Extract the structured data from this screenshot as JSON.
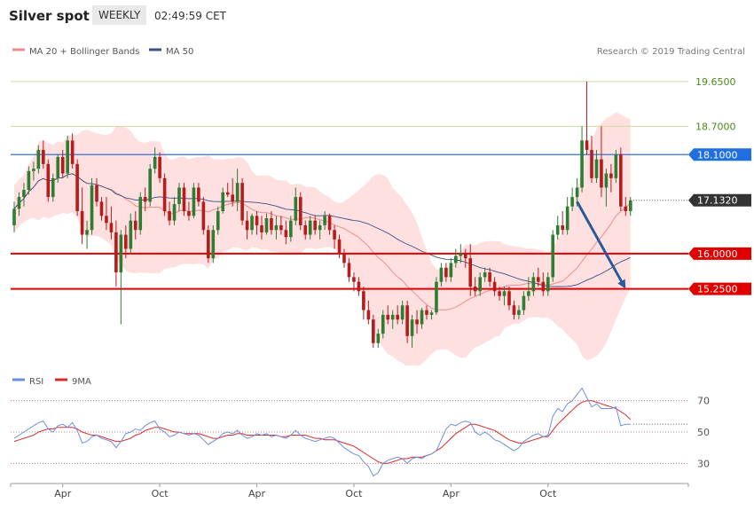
{
  "header": {
    "title": "Silver spot",
    "period": "WEEKLY",
    "time": "02:49:59 CET"
  },
  "legend": {
    "ma20": "MA 20 + Bollinger Bands",
    "ma50": "MA 50",
    "credit": "Research © 2019 Trading Central",
    "rsi": "RSI",
    "rsi_ma": "9MA"
  },
  "colors": {
    "candle_up": "#2e7d32",
    "candle_down": "#b71c1c",
    "bollinger_fill": "#ffe0e0",
    "ma20": "#f28b8b",
    "ma50": "#3b4f8a",
    "resistance_line": "#c8dca0",
    "resistance_label": "#4a8a1a",
    "ma50_hline": "#3a6fd8",
    "ma50_label_bg": "#1f6fe0",
    "support": "#e00000",
    "current_bg": "#333333",
    "arrow": "#2a5a9a",
    "rsi_line": "#6b8fe0",
    "rsi_ma_line": "#d52b2b"
  },
  "chart_data": [
    {
      "type": "candlestick",
      "title": "Silver spot",
      "ylim": [
        13.7,
        19.95
      ],
      "x_ticks": [
        {
          "i": 10,
          "label": "Apr"
        },
        {
          "i": 30,
          "label": "Oct"
        },
        {
          "i": 50,
          "label": "Apr"
        },
        {
          "i": 70,
          "label": "Oct"
        },
        {
          "i": 90,
          "label": "Apr"
        },
        {
          "i": 110,
          "label": "Oct"
        }
      ],
      "levels": [
        {
          "value": 19.65,
          "label": "19.6500",
          "kind": "resistance"
        },
        {
          "value": 18.7,
          "label": "18.7000",
          "kind": "resistance"
        },
        {
          "value": 18.1,
          "label": "18.1000",
          "kind": "ma50"
        },
        {
          "value": 16.0,
          "label": "16.0000",
          "kind": "support"
        },
        {
          "value": 15.25,
          "label": "15.2500",
          "kind": "support"
        }
      ],
      "current_price": {
        "value": 17.132,
        "label": "17.1320"
      },
      "forecast_arrow": {
        "from_index": 116,
        "from_value": 17.1,
        "to_index": 126,
        "to_value": 15.25
      },
      "candles": [
        {
          "o": 16.6,
          "h": 17.1,
          "l": 16.45,
          "c": 16.95
        },
        {
          "o": 16.95,
          "h": 17.3,
          "l": 16.8,
          "c": 17.2
        },
        {
          "o": 17.2,
          "h": 17.5,
          "l": 17.0,
          "c": 17.35
        },
        {
          "o": 17.35,
          "h": 17.85,
          "l": 17.25,
          "c": 17.75
        },
        {
          "o": 17.75,
          "h": 17.95,
          "l": 17.55,
          "c": 17.8
        },
        {
          "o": 17.8,
          "h": 18.3,
          "l": 17.7,
          "c": 18.2
        },
        {
          "o": 18.2,
          "h": 18.4,
          "l": 17.8,
          "c": 17.9
        },
        {
          "o": 17.9,
          "h": 18.0,
          "l": 17.1,
          "c": 17.2
        },
        {
          "o": 17.2,
          "h": 17.7,
          "l": 17.1,
          "c": 17.6
        },
        {
          "o": 17.6,
          "h": 18.1,
          "l": 17.5,
          "c": 18.05
        },
        {
          "o": 18.05,
          "h": 18.2,
          "l": 17.6,
          "c": 17.7
        },
        {
          "o": 17.7,
          "h": 18.5,
          "l": 17.6,
          "c": 18.4
        },
        {
          "o": 18.4,
          "h": 18.55,
          "l": 17.8,
          "c": 17.9
        },
        {
          "o": 17.9,
          "h": 18.0,
          "l": 16.8,
          "c": 16.9
        },
        {
          "o": 16.9,
          "h": 17.4,
          "l": 16.2,
          "c": 16.4
        },
        {
          "o": 16.4,
          "h": 16.7,
          "l": 16.1,
          "c": 16.5
        },
        {
          "o": 16.5,
          "h": 17.6,
          "l": 16.4,
          "c": 17.45
        },
        {
          "o": 17.45,
          "h": 17.6,
          "l": 17.0,
          "c": 17.1
        },
        {
          "o": 17.1,
          "h": 17.2,
          "l": 16.7,
          "c": 16.8
        },
        {
          "o": 16.8,
          "h": 17.2,
          "l": 16.5,
          "c": 16.65
        },
        {
          "o": 16.65,
          "h": 17.0,
          "l": 16.3,
          "c": 16.45
        },
        {
          "o": 16.45,
          "h": 16.7,
          "l": 15.3,
          "c": 15.6
        },
        {
          "o": 15.6,
          "h": 16.5,
          "l": 14.5,
          "c": 16.4
        },
        {
          "o": 16.4,
          "h": 16.6,
          "l": 15.9,
          "c": 16.1
        },
        {
          "o": 16.1,
          "h": 16.85,
          "l": 16.0,
          "c": 16.7
        },
        {
          "o": 16.7,
          "h": 16.9,
          "l": 16.3,
          "c": 16.5
        },
        {
          "o": 16.5,
          "h": 17.3,
          "l": 16.4,
          "c": 17.2
        },
        {
          "o": 17.2,
          "h": 17.4,
          "l": 16.9,
          "c": 17.1
        },
        {
          "o": 17.1,
          "h": 17.9,
          "l": 17.0,
          "c": 17.8
        },
        {
          "o": 17.8,
          "h": 18.25,
          "l": 17.7,
          "c": 18.05
        },
        {
          "o": 18.05,
          "h": 18.15,
          "l": 17.5,
          "c": 17.6
        },
        {
          "o": 17.6,
          "h": 17.7,
          "l": 16.8,
          "c": 16.9
        },
        {
          "o": 16.9,
          "h": 17.1,
          "l": 16.6,
          "c": 16.7
        },
        {
          "o": 16.7,
          "h": 17.2,
          "l": 16.6,
          "c": 17.05
        },
        {
          "o": 17.05,
          "h": 17.5,
          "l": 16.9,
          "c": 17.4
        },
        {
          "o": 17.4,
          "h": 17.5,
          "l": 16.8,
          "c": 16.9
        },
        {
          "o": 16.9,
          "h": 17.1,
          "l": 16.7,
          "c": 16.8
        },
        {
          "o": 16.8,
          "h": 17.5,
          "l": 16.75,
          "c": 17.4
        },
        {
          "o": 17.4,
          "h": 17.5,
          "l": 17.0,
          "c": 17.1
        },
        {
          "o": 17.1,
          "h": 17.2,
          "l": 16.4,
          "c": 16.5
        },
        {
          "o": 16.5,
          "h": 16.6,
          "l": 15.8,
          "c": 15.9
        },
        {
          "o": 15.9,
          "h": 16.6,
          "l": 15.8,
          "c": 16.5
        },
        {
          "o": 16.5,
          "h": 17.0,
          "l": 16.4,
          "c": 16.9
        },
        {
          "o": 16.9,
          "h": 17.4,
          "l": 16.85,
          "c": 17.3
        },
        {
          "o": 17.3,
          "h": 17.5,
          "l": 17.2,
          "c": 17.25
        },
        {
          "o": 17.25,
          "h": 17.6,
          "l": 17.0,
          "c": 17.1
        },
        {
          "o": 17.1,
          "h": 17.8,
          "l": 16.9,
          "c": 17.5
        },
        {
          "o": 17.5,
          "h": 17.6,
          "l": 16.6,
          "c": 16.7
        },
        {
          "o": 16.7,
          "h": 16.9,
          "l": 16.3,
          "c": 16.5
        },
        {
          "o": 16.5,
          "h": 16.85,
          "l": 16.4,
          "c": 16.8
        },
        {
          "o": 16.8,
          "h": 16.9,
          "l": 16.4,
          "c": 16.6
        },
        {
          "o": 16.6,
          "h": 16.8,
          "l": 16.3,
          "c": 16.45
        },
        {
          "o": 16.45,
          "h": 16.85,
          "l": 16.4,
          "c": 16.75
        },
        {
          "o": 16.75,
          "h": 16.9,
          "l": 16.4,
          "c": 16.5
        },
        {
          "o": 16.5,
          "h": 16.8,
          "l": 16.3,
          "c": 16.6
        },
        {
          "o": 16.6,
          "h": 16.8,
          "l": 16.4,
          "c": 16.5
        },
        {
          "o": 16.5,
          "h": 16.7,
          "l": 16.2,
          "c": 16.35
        },
        {
          "o": 16.35,
          "h": 16.8,
          "l": 16.25,
          "c": 16.7
        },
        {
          "o": 16.7,
          "h": 17.4,
          "l": 16.6,
          "c": 17.2
        },
        {
          "o": 17.2,
          "h": 17.3,
          "l": 16.5,
          "c": 16.6
        },
        {
          "o": 16.6,
          "h": 16.7,
          "l": 16.3,
          "c": 16.4
        },
        {
          "o": 16.4,
          "h": 16.8,
          "l": 16.3,
          "c": 16.7
        },
        {
          "o": 16.7,
          "h": 16.8,
          "l": 16.4,
          "c": 16.5
        },
        {
          "o": 16.5,
          "h": 16.7,
          "l": 16.3,
          "c": 16.6
        },
        {
          "o": 16.6,
          "h": 16.9,
          "l": 16.5,
          "c": 16.8
        },
        {
          "o": 16.8,
          "h": 16.85,
          "l": 16.4,
          "c": 16.5
        },
        {
          "o": 16.5,
          "h": 16.6,
          "l": 16.1,
          "c": 16.3
        },
        {
          "o": 16.3,
          "h": 16.4,
          "l": 15.9,
          "c": 16.0
        },
        {
          "o": 16.0,
          "h": 16.1,
          "l": 15.7,
          "c": 15.8
        },
        {
          "o": 15.8,
          "h": 15.9,
          "l": 15.4,
          "c": 15.5
        },
        {
          "o": 15.5,
          "h": 15.6,
          "l": 15.2,
          "c": 15.4
        },
        {
          "o": 15.4,
          "h": 15.5,
          "l": 15.1,
          "c": 15.2
        },
        {
          "o": 15.2,
          "h": 15.3,
          "l": 14.6,
          "c": 14.8
        },
        {
          "o": 14.8,
          "h": 15.0,
          "l": 14.5,
          "c": 14.6
        },
        {
          "o": 14.6,
          "h": 14.7,
          "l": 14.0,
          "c": 14.1
        },
        {
          "o": 14.1,
          "h": 14.4,
          "l": 14.0,
          "c": 14.3
        },
        {
          "o": 14.3,
          "h": 14.8,
          "l": 14.2,
          "c": 14.7
        },
        {
          "o": 14.7,
          "h": 14.9,
          "l": 14.5,
          "c": 14.6
        },
        {
          "o": 14.6,
          "h": 14.8,
          "l": 14.4,
          "c": 14.7
        },
        {
          "o": 14.7,
          "h": 14.9,
          "l": 14.5,
          "c": 14.6
        },
        {
          "o": 14.6,
          "h": 15.0,
          "l": 14.5,
          "c": 14.9
        },
        {
          "o": 14.9,
          "h": 15.0,
          "l": 14.1,
          "c": 14.25
        },
        {
          "o": 14.25,
          "h": 14.7,
          "l": 14.0,
          "c": 14.6
        },
        {
          "o": 14.6,
          "h": 14.8,
          "l": 14.3,
          "c": 14.5
        },
        {
          "o": 14.5,
          "h": 14.85,
          "l": 14.4,
          "c": 14.8
        },
        {
          "o": 14.8,
          "h": 14.9,
          "l": 14.6,
          "c": 14.7
        },
        {
          "o": 14.7,
          "h": 14.8,
          "l": 14.6,
          "c": 14.75
        },
        {
          "o": 14.75,
          "h": 15.5,
          "l": 14.7,
          "c": 15.4
        },
        {
          "o": 15.4,
          "h": 15.8,
          "l": 15.3,
          "c": 15.7
        },
        {
          "o": 15.7,
          "h": 15.8,
          "l": 15.4,
          "c": 15.5
        },
        {
          "o": 15.5,
          "h": 15.9,
          "l": 15.4,
          "c": 15.8
        },
        {
          "o": 15.8,
          "h": 16.1,
          "l": 15.7,
          "c": 15.95
        },
        {
          "o": 15.95,
          "h": 16.2,
          "l": 15.8,
          "c": 16.0
        },
        {
          "o": 16.0,
          "h": 16.1,
          "l": 15.7,
          "c": 15.9
        },
        {
          "o": 15.9,
          "h": 16.2,
          "l": 15.1,
          "c": 15.3
        },
        {
          "o": 15.3,
          "h": 15.5,
          "l": 15.1,
          "c": 15.2
        },
        {
          "o": 15.2,
          "h": 15.6,
          "l": 15.1,
          "c": 15.5
        },
        {
          "o": 15.5,
          "h": 15.7,
          "l": 15.4,
          "c": 15.6
        },
        {
          "o": 15.6,
          "h": 15.7,
          "l": 15.3,
          "c": 15.4
        },
        {
          "o": 15.4,
          "h": 15.5,
          "l": 15.1,
          "c": 15.2
        },
        {
          "o": 15.2,
          "h": 15.3,
          "l": 15.0,
          "c": 15.1
        },
        {
          "o": 15.1,
          "h": 15.3,
          "l": 14.9,
          "c": 15.2
        },
        {
          "o": 15.2,
          "h": 15.3,
          "l": 14.8,
          "c": 14.9
        },
        {
          "o": 14.9,
          "h": 15.0,
          "l": 14.6,
          "c": 14.7
        },
        {
          "o": 14.7,
          "h": 14.9,
          "l": 14.6,
          "c": 14.8
        },
        {
          "o": 14.8,
          "h": 15.2,
          "l": 14.7,
          "c": 15.1
        },
        {
          "o": 15.1,
          "h": 15.5,
          "l": 15.0,
          "c": 15.2
        },
        {
          "o": 15.2,
          "h": 15.6,
          "l": 15.1,
          "c": 15.5
        },
        {
          "o": 15.5,
          "h": 15.7,
          "l": 15.3,
          "c": 15.4
        },
        {
          "o": 15.4,
          "h": 15.6,
          "l": 15.1,
          "c": 15.2
        },
        {
          "o": 15.2,
          "h": 15.6,
          "l": 15.1,
          "c": 15.5
        },
        {
          "o": 15.5,
          "h": 16.5,
          "l": 15.4,
          "c": 16.4
        },
        {
          "o": 16.4,
          "h": 16.8,
          "l": 16.3,
          "c": 16.6
        },
        {
          "o": 16.6,
          "h": 16.9,
          "l": 16.4,
          "c": 16.5
        },
        {
          "o": 16.5,
          "h": 17.2,
          "l": 16.4,
          "c": 17.0
        },
        {
          "o": 17.0,
          "h": 17.4,
          "l": 16.9,
          "c": 17.2
        },
        {
          "o": 17.2,
          "h": 17.6,
          "l": 17.0,
          "c": 17.4
        },
        {
          "o": 17.4,
          "h": 18.7,
          "l": 17.3,
          "c": 18.4
        },
        {
          "o": 18.4,
          "h": 19.65,
          "l": 18.1,
          "c": 18.2
        },
        {
          "o": 18.2,
          "h": 18.5,
          "l": 17.5,
          "c": 17.6
        },
        {
          "o": 17.6,
          "h": 18.2,
          "l": 17.5,
          "c": 18.0
        },
        {
          "o": 18.0,
          "h": 18.7,
          "l": 17.2,
          "c": 17.4
        },
        {
          "o": 17.4,
          "h": 17.8,
          "l": 17.0,
          "c": 17.7
        },
        {
          "o": 17.7,
          "h": 17.9,
          "l": 17.3,
          "c": 17.6
        },
        {
          "o": 17.6,
          "h": 18.2,
          "l": 17.5,
          "c": 18.1
        },
        {
          "o": 18.1,
          "h": 18.25,
          "l": 16.9,
          "c": 17.0
        },
        {
          "o": 17.0,
          "h": 17.2,
          "l": 16.8,
          "c": 16.9
        },
        {
          "o": 16.9,
          "h": 17.2,
          "l": 16.8,
          "c": 17.13
        }
      ]
    },
    {
      "type": "line",
      "series": [
        {
          "name": "RSI"
        },
        {
          "name": "9MA"
        }
      ],
      "ylim": [
        20,
        80
      ],
      "y_ticks": [
        30,
        50,
        70
      ],
      "rsi": [
        46,
        48,
        50,
        52,
        54,
        56,
        57,
        52,
        50,
        54,
        55,
        53,
        56,
        51,
        43,
        44,
        47,
        48,
        46,
        45,
        44,
        40,
        44,
        49,
        50,
        52,
        51,
        54,
        56,
        57,
        52,
        50,
        47,
        48,
        50,
        49,
        48,
        49,
        48,
        45,
        42,
        44,
        46,
        49,
        50,
        49,
        51,
        48,
        46,
        47,
        49,
        48,
        49,
        47,
        48,
        47,
        46,
        48,
        51,
        48,
        46,
        45,
        44,
        45,
        46,
        47,
        46,
        43,
        40,
        38,
        36,
        35,
        31,
        28,
        22,
        24,
        30,
        32,
        33,
        34,
        33,
        30,
        33,
        34,
        33,
        35,
        36,
        38,
        45,
        52,
        55,
        54,
        56,
        57,
        56,
        50,
        48,
        50,
        48,
        45,
        44,
        42,
        40,
        38,
        40,
        44,
        46,
        48,
        49,
        47,
        48,
        60,
        65,
        63,
        68,
        70,
        74,
        78,
        72,
        66,
        68,
        65,
        65,
        65,
        66,
        54,
        55,
        55
      ],
      "rsi_ma": [
        44,
        45,
        46,
        47,
        48,
        50,
        51,
        52,
        52,
        53,
        53,
        53,
        53,
        52,
        50,
        49,
        48,
        48,
        47,
        46,
        45,
        44,
        44,
        45,
        46,
        48,
        49,
        51,
        52,
        53,
        53,
        52,
        51,
        50,
        50,
        49,
        49,
        49,
        49,
        48,
        47,
        46,
        46,
        47,
        48,
        48,
        49,
        49,
        48,
        48,
        48,
        48,
        48,
        48,
        48,
        47,
        47,
        48,
        48,
        48,
        48,
        47,
        46,
        46,
        45,
        45,
        45,
        44,
        43,
        42,
        41,
        39,
        37,
        35,
        33,
        31,
        30,
        30,
        31,
        32,
        33,
        33,
        34,
        34,
        34,
        35,
        36,
        38,
        40,
        43,
        46,
        49,
        51,
        53,
        55,
        55,
        54,
        53,
        52,
        51,
        49,
        47,
        45,
        44,
        43,
        43,
        44,
        45,
        46,
        47,
        47,
        51,
        55,
        58,
        61,
        64,
        67,
        69,
        70,
        70,
        69,
        68,
        67,
        66,
        65,
        63,
        61,
        58
      ]
    }
  ]
}
